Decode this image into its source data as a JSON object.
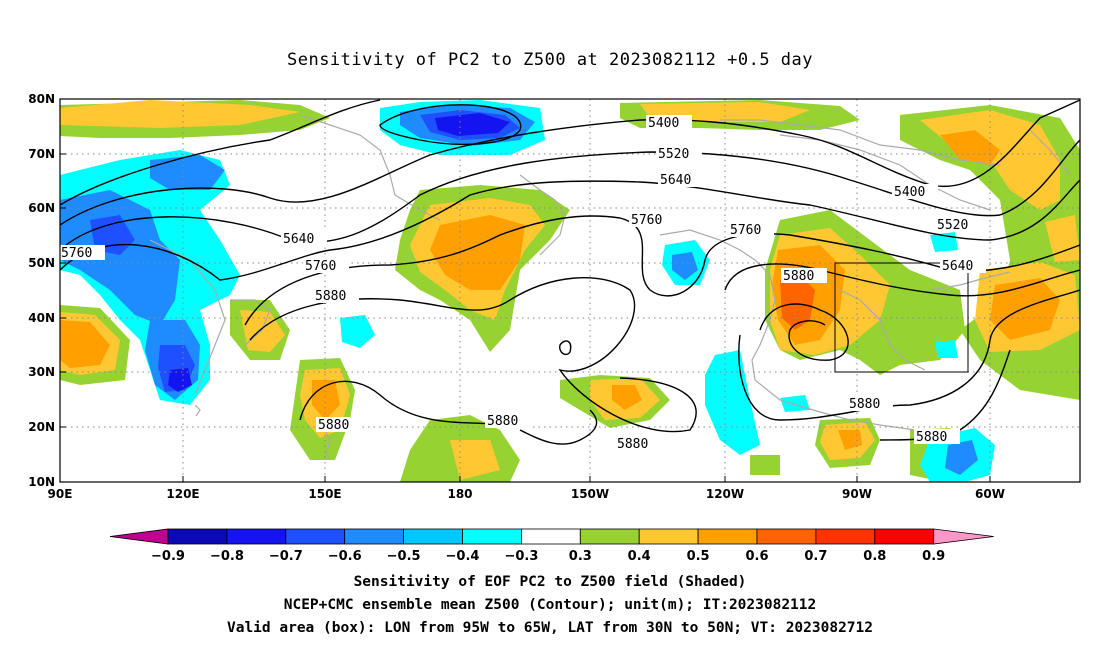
{
  "title": "Sensitivity of PC2 to Z500 at 2023082112 +0.5 day",
  "axes": {
    "lon_labels": [
      "90E",
      "120E",
      "150E",
      "180",
      "150W",
      "120W",
      "90W",
      "60W"
    ],
    "lat_labels": [
      "80N",
      "70N",
      "60N",
      "50N",
      "40N",
      "30N",
      "20N",
      "10N"
    ]
  },
  "contour_labels": [
    "5400",
    "5520",
    "5640",
    "5760",
    "5760",
    "5640",
    "5760",
    "5880",
    "5400",
    "5520",
    "5640",
    "5760",
    "5880",
    "5880",
    "5880",
    "5880",
    "5880",
    "5880"
  ],
  "colorbar": {
    "labels": [
      "−0.9",
      "−0.8",
      "−0.7",
      "−0.6",
      "−0.5",
      "−0.4",
      "−0.3",
      "0.3",
      "0.4",
      "0.5",
      "0.6",
      "0.7",
      "0.8",
      "0.9"
    ],
    "colors": [
      "#c00090",
      "#0a0ab4",
      "#1414f0",
      "#1e50ff",
      "#1e8cff",
      "#00c8ff",
      "#00ffff",
      "#ffffff",
      "#96d232",
      "#ffc832",
      "#ffa000",
      "#ff6400",
      "#ff3200",
      "#ff0000",
      "#ff96c8"
    ]
  },
  "footer": {
    "line1": "Sensitivity of EOF PC2 to Z500 field (Shaded)",
    "line2": "NCEP+CMC ensemble mean Z500 (Contour); unit(m); IT:2023082112",
    "line3": "Valid area (box): LON from 95W to 65W, LAT from 30N to 50N; VT: 2023082712"
  }
}
